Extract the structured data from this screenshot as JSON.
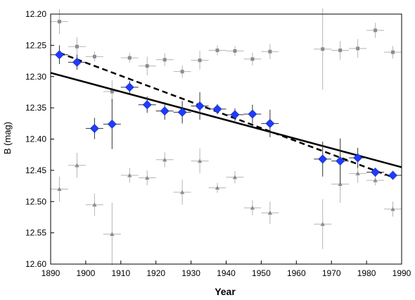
{
  "chart_data": {
    "type": "scatter",
    "xlabel": "Year",
    "ylabel": "B (mag)",
    "xlim": [
      1890,
      1990
    ],
    "ylim": [
      12.2,
      12.6
    ],
    "y_inverted": true,
    "x_ticks": [
      1890,
      1900,
      1910,
      1920,
      1930,
      1940,
      1950,
      1960,
      1970,
      1980,
      1990
    ],
    "y_ticks": [
      "12.20",
      "12.25",
      "12.30",
      "12.35",
      "12.40",
      "12.45",
      "12.50",
      "12.55",
      "12.60"
    ],
    "grid": false,
    "legend": "none",
    "series": [
      {
        "marker": "diamond",
        "color": "#1f3cff",
        "error_color": "#333333",
        "points": [
          {
            "x": 1892.5,
            "y": 12.265,
            "xerr": 2.5,
            "yerr": 0.015
          },
          {
            "x": 1897.5,
            "y": 12.277,
            "xerr": 2.5,
            "yerr": 0.012
          },
          {
            "x": 1902.5,
            "y": 12.383,
            "xerr": 2.5,
            "yerr": 0.017
          },
          {
            "x": 1907.5,
            "y": 12.376,
            "xerr": 2.5,
            "yerr": 0.04
          },
          {
            "x": 1912.5,
            "y": 12.317,
            "xerr": 2.5,
            "yerr": 0.01
          },
          {
            "x": 1917.5,
            "y": 12.345,
            "xerr": 2.5,
            "yerr": 0.013
          },
          {
            "x": 1922.5,
            "y": 12.355,
            "xerr": 2.5,
            "yerr": 0.014
          },
          {
            "x": 1927.5,
            "y": 12.357,
            "xerr": 2.5,
            "yerr": 0.018
          },
          {
            "x": 1932.5,
            "y": 12.347,
            "xerr": 2.5,
            "yerr": 0.022
          },
          {
            "x": 1937.5,
            "y": 12.352,
            "xerr": 2.5,
            "yerr": 0.008
          },
          {
            "x": 1942.5,
            "y": 12.361,
            "xerr": 2.5,
            "yerr": 0.01
          },
          {
            "x": 1947.5,
            "y": 12.36,
            "xerr": 2.5,
            "yerr": 0.015
          },
          {
            "x": 1952.5,
            "y": 12.375,
            "xerr": 2.5,
            "yerr": 0.022
          },
          {
            "x": 1967.5,
            "y": 12.432,
            "xerr": 2.5,
            "yerr": 0.028
          },
          {
            "x": 1972.5,
            "y": 12.435,
            "xerr": 2.5,
            "yerr": 0.036
          },
          {
            "x": 1977.5,
            "y": 12.43,
            "xerr": 2.5,
            "yerr": 0.016
          },
          {
            "x": 1982.5,
            "y": 12.453,
            "xerr": 2.5,
            "yerr": 0.007
          },
          {
            "x": 1987.5,
            "y": 12.458,
            "xerr": 2.5,
            "yerr": 0.007
          }
        ]
      },
      {
        "marker": "square",
        "color": "#8c8c8c",
        "error_color": "#b4b4b4",
        "points": [
          {
            "x": 1892.5,
            "y": 12.212,
            "xerr": 2.5,
            "yerr": 0.02
          },
          {
            "x": 1897.5,
            "y": 12.252,
            "xerr": 2.5,
            "yerr": 0.015
          },
          {
            "x": 1902.5,
            "y": 12.268,
            "xerr": 2.5,
            "yerr": 0.008
          },
          {
            "x": 1907.5,
            "y": 12.324,
            "xerr": 2.5,
            "yerr": 0.018
          },
          {
            "x": 1912.5,
            "y": 12.27,
            "xerr": 2.5,
            "yerr": 0.008
          },
          {
            "x": 1917.5,
            "y": 12.283,
            "xerr": 2.5,
            "yerr": 0.015
          },
          {
            "x": 1922.5,
            "y": 12.273,
            "xerr": 2.5,
            "yerr": 0.01
          },
          {
            "x": 1927.5,
            "y": 12.292,
            "xerr": 2.5,
            "yerr": 0.01
          },
          {
            "x": 1932.5,
            "y": 12.274,
            "xerr": 2.5,
            "yerr": 0.015
          },
          {
            "x": 1937.5,
            "y": 12.258,
            "xerr": 2.5,
            "yerr": 0.008
          },
          {
            "x": 1942.5,
            "y": 12.259,
            "xerr": 2.5,
            "yerr": 0.008
          },
          {
            "x": 1947.5,
            "y": 12.272,
            "xerr": 2.5,
            "yerr": 0.01
          },
          {
            "x": 1952.5,
            "y": 12.26,
            "xerr": 2.5,
            "yerr": 0.012
          },
          {
            "x": 1967.5,
            "y": 12.256,
            "xerr": 2.5,
            "yerr": 0.065
          },
          {
            "x": 1972.5,
            "y": 12.258,
            "xerr": 2.5,
            "yerr": 0.015
          },
          {
            "x": 1977.5,
            "y": 12.255,
            "xerr": 2.5,
            "yerr": 0.015
          },
          {
            "x": 1982.5,
            "y": 12.226,
            "xerr": 2.5,
            "yerr": 0.012
          },
          {
            "x": 1987.5,
            "y": 12.261,
            "xerr": 2.5,
            "yerr": 0.01
          }
        ]
      },
      {
        "marker": "triangle",
        "color": "#8c8c8c",
        "error_color": "#b4b4b4",
        "points": [
          {
            "x": 1892.5,
            "y": 12.48,
            "xerr": 2.5,
            "yerr": 0.02
          },
          {
            "x": 1897.5,
            "y": 12.442,
            "xerr": 2.5,
            "yerr": 0.02
          },
          {
            "x": 1902.5,
            "y": 12.505,
            "xerr": 2.5,
            "yerr": 0.018
          },
          {
            "x": 1907.5,
            "y": 12.552,
            "xerr": 2.5,
            "yerr": 0.05
          },
          {
            "x": 1912.5,
            "y": 12.458,
            "xerr": 2.5,
            "yerr": 0.012
          },
          {
            "x": 1917.5,
            "y": 12.462,
            "xerr": 2.5,
            "yerr": 0.012
          },
          {
            "x": 1922.5,
            "y": 12.433,
            "xerr": 2.5,
            "yerr": 0.012
          },
          {
            "x": 1927.5,
            "y": 12.485,
            "xerr": 2.5,
            "yerr": 0.02
          },
          {
            "x": 1932.5,
            "y": 12.435,
            "xerr": 2.5,
            "yerr": 0.02
          },
          {
            "x": 1937.5,
            "y": 12.478,
            "xerr": 2.5,
            "yerr": 0.008
          },
          {
            "x": 1942.5,
            "y": 12.461,
            "xerr": 2.5,
            "yerr": 0.01
          },
          {
            "x": 1947.5,
            "y": 12.51,
            "xerr": 2.5,
            "yerr": 0.012
          },
          {
            "x": 1952.5,
            "y": 12.518,
            "xerr": 2.5,
            "yerr": 0.018
          },
          {
            "x": 1967.5,
            "y": 12.536,
            "xerr": 2.5,
            "yerr": 0.04
          },
          {
            "x": 1972.5,
            "y": 12.472,
            "xerr": 2.5,
            "yerr": 0.03
          },
          {
            "x": 1977.5,
            "y": 12.455,
            "xerr": 2.5,
            "yerr": 0.015
          },
          {
            "x": 1982.5,
            "y": 12.466,
            "xerr": 2.5,
            "yerr": 0.008
          },
          {
            "x": 1987.5,
            "y": 12.512,
            "xerr": 2.5,
            "yerr": 0.012
          }
        ]
      }
    ],
    "fit_lines": [
      {
        "style": "solid",
        "color": "#000000",
        "x": [
          1890,
          1990
        ],
        "y": [
          12.294,
          12.445
        ]
      },
      {
        "style": "dashed",
        "color": "#000000",
        "x": [
          1892.5,
          1987.5
        ],
        "y": [
          12.262,
          12.461
        ]
      }
    ]
  }
}
